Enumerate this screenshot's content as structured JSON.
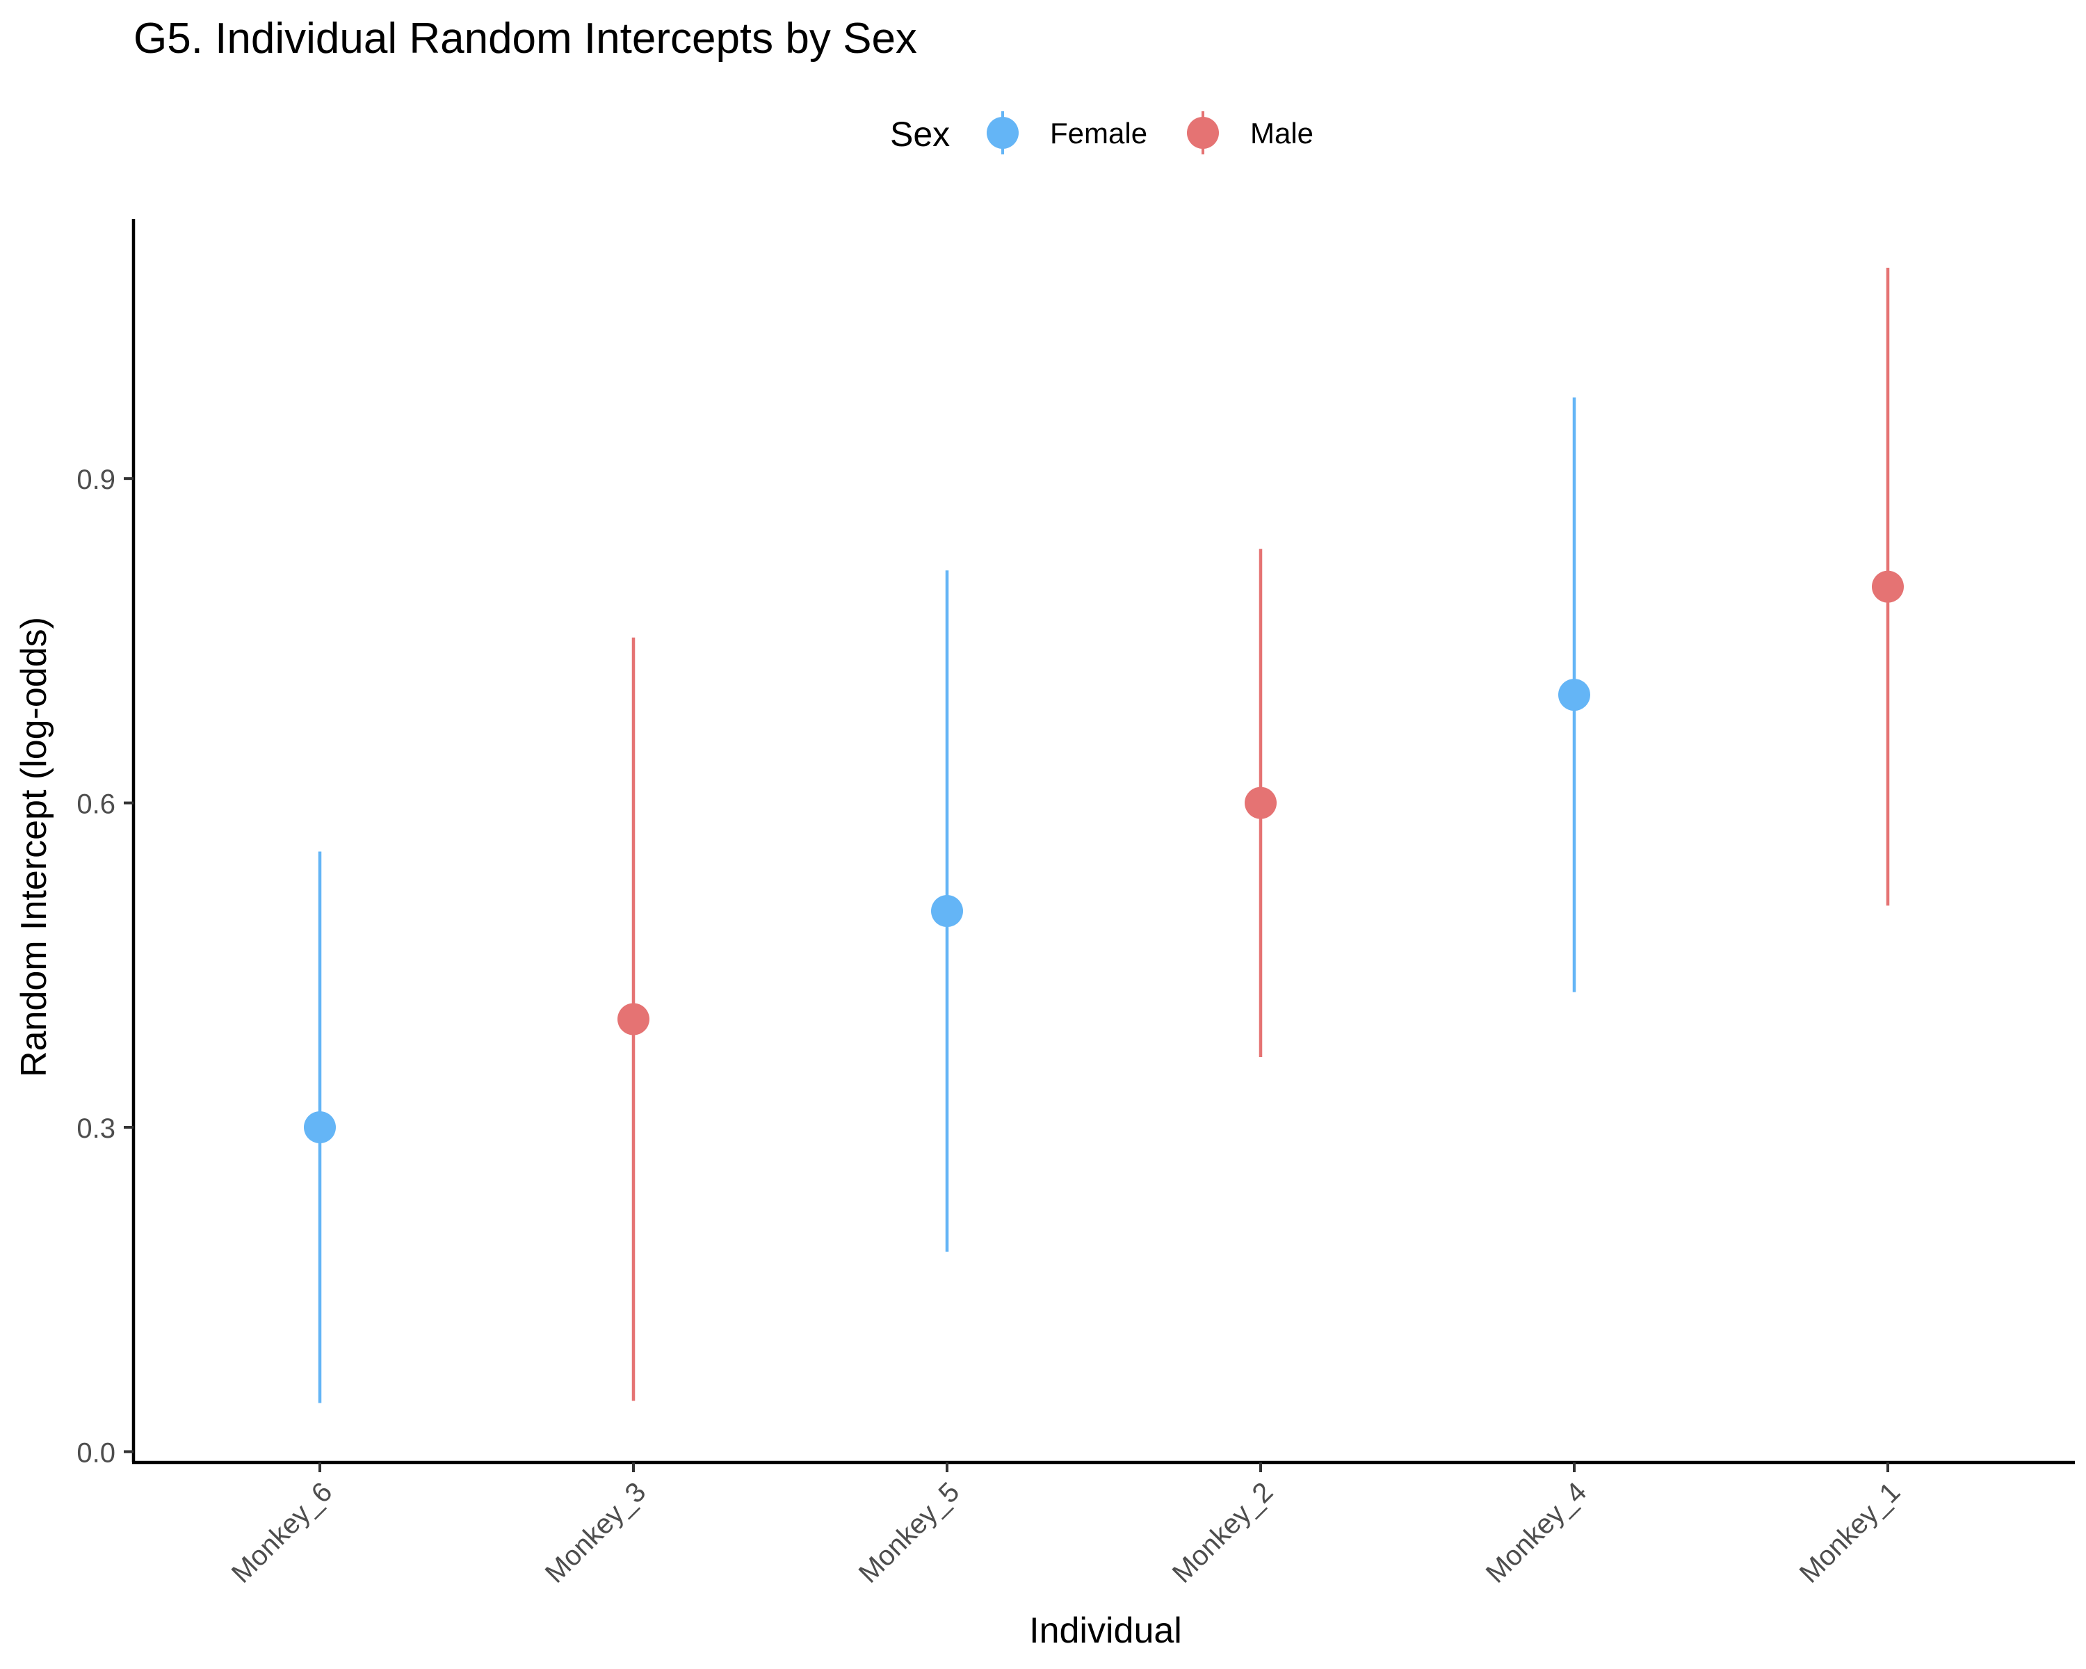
{
  "chart_data": {
    "type": "scatter",
    "title": "G5. Individual Random Intercepts by Sex",
    "xlabel": "Individual",
    "ylabel": "Random Intercept (log-odds)",
    "ylim": [
      -0.01,
      1.14
    ],
    "yticks": [
      0.0,
      0.3,
      0.6,
      0.9
    ],
    "ytick_labels": [
      "0.0",
      "0.3",
      "0.6",
      "0.9"
    ],
    "categories": [
      "Monkey_6",
      "Monkey_3",
      "Monkey_5",
      "Monkey_2",
      "Monkey_4",
      "Monkey_1"
    ],
    "grid": false,
    "legend": {
      "title": "Sex",
      "placement": "top",
      "entries": [
        {
          "label": "Female",
          "color": "#64B5F6"
        },
        {
          "label": "Male",
          "color": "#E57373"
        }
      ]
    },
    "points": [
      {
        "individual": "Monkey_6",
        "sex": "Female",
        "estimate": 0.3,
        "lower": 0.045,
        "upper": 0.555
      },
      {
        "individual": "Monkey_3",
        "sex": "Male",
        "estimate": 0.4,
        "lower": 0.047,
        "upper": 0.753
      },
      {
        "individual": "Monkey_5",
        "sex": "Female",
        "estimate": 0.5,
        "lower": 0.185,
        "upper": 0.815
      },
      {
        "individual": "Monkey_2",
        "sex": "Male",
        "estimate": 0.6,
        "lower": 0.365,
        "upper": 0.835
      },
      {
        "individual": "Monkey_4",
        "sex": "Female",
        "estimate": 0.7,
        "lower": 0.425,
        "upper": 0.975
      },
      {
        "individual": "Monkey_1",
        "sex": "Male",
        "estimate": 0.8,
        "lower": 0.505,
        "upper": 1.095
      }
    ]
  }
}
